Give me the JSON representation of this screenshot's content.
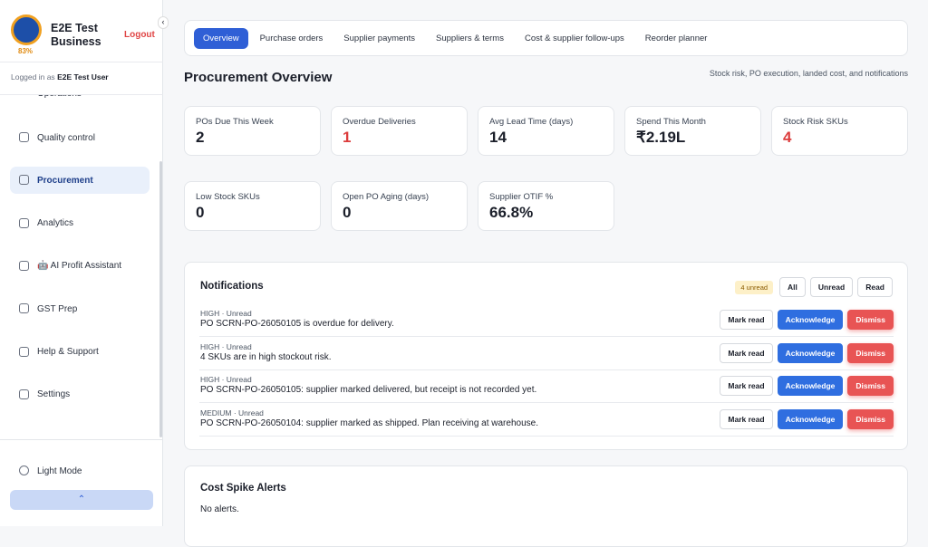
{
  "sidebar": {
    "business_name": "E2E Test Business",
    "progress": "83%",
    "logout": "Logout",
    "logged_in_prefix": "Logged in as",
    "user": "E2E Test User",
    "partial_item": "Operations",
    "nav": [
      "Quality control",
      "Procurement",
      "Analytics",
      "🤖 AI Profit Assistant",
      "GST Prep",
      "Help & Support",
      "Settings"
    ],
    "active": "Procurement",
    "light_mode": "Light Mode"
  },
  "tabs": [
    "Overview",
    "Purchase orders",
    "Supplier payments",
    "Suppliers & terms",
    "Cost & supplier follow-ups",
    "Reorder planner"
  ],
  "active_tab": "Overview",
  "header": {
    "title": "Procurement Overview",
    "subtitle": "Stock risk, PO execution, landed cost, and notifications"
  },
  "kpis": [
    {
      "label": "POs Due This Week",
      "value": "2"
    },
    {
      "label": "Overdue Deliveries",
      "value": "1",
      "color": "#dc3c3c"
    },
    {
      "label": "Avg Lead Time (days)",
      "value": "14"
    },
    {
      "label": "Spend This Month",
      "value": "₹2.19L"
    },
    {
      "label": "Stock Risk SKUs",
      "value": "4",
      "color": "#dc3c3c"
    },
    {
      "label": "Low Stock SKUs",
      "value": "0"
    },
    {
      "label": "Open PO Aging (days)",
      "value": "0"
    },
    {
      "label": "Supplier OTIF %",
      "value": "66.8%"
    }
  ],
  "notifications": {
    "title": "Notifications",
    "unread_badge": "4 unread",
    "filters": [
      "All",
      "Unread",
      "Read"
    ],
    "actions": [
      "Mark read",
      "Acknowledge",
      "Dismiss"
    ],
    "items": [
      {
        "meta": "HIGH · Unread",
        "message": "PO SCRN-PO-26050105 is overdue for delivery."
      },
      {
        "meta": "HIGH · Unread",
        "message": "4 SKUs are in high stockout risk."
      },
      {
        "meta": "HIGH · Unread",
        "message": "PO SCRN-PO-26050105: supplier marked delivered, but receipt is not recorded yet."
      },
      {
        "meta": "MEDIUM · Unread",
        "message": "PO SCRN-PO-26050104: supplier marked as shipped. Plan receiving at warehouse."
      }
    ]
  },
  "cost_spike": {
    "title": "Cost Spike Alerts",
    "message": "No alerts."
  }
}
